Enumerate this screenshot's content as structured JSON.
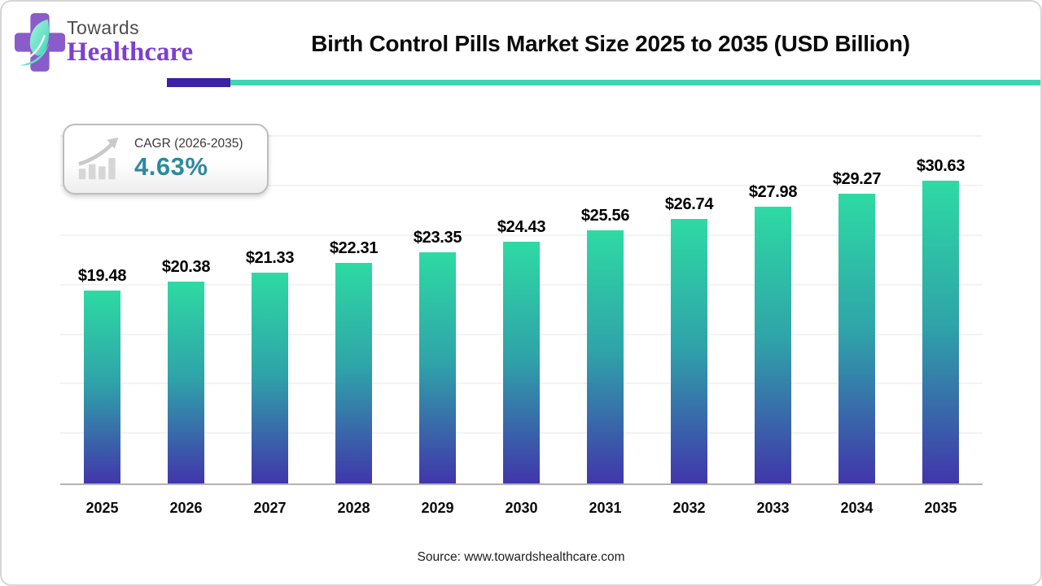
{
  "logo": {
    "towards": "Towards",
    "healthcare": "Healthcare"
  },
  "header": {
    "title": "Birth Control Pills Market Size 2025 to 2035 (USD Billion)"
  },
  "cagr_badge": {
    "label": "CAGR (2026-2035)",
    "value": "4.63%"
  },
  "source": {
    "text": "Source: www.towardshealthcare.com"
  },
  "colors": {
    "bar_top": "#2edaa3",
    "bar_mid": "#2fa3a9",
    "bar_bottom": "#4136ab",
    "accent_teal": "#3fd4b2",
    "accent_purple": "#3b21a5",
    "logo_purple": "#8a5cc9",
    "logo_leaf": "#3ed6b6",
    "cagr_value_color": "#2c89a0",
    "axis_line": "#b3b3b3",
    "gridline": "#f3f3f3"
  },
  "chart_data": {
    "type": "bar",
    "title": "Birth Control Pills Market Size 2025 to 2035 (USD Billion)",
    "categories": [
      "2025",
      "2026",
      "2027",
      "2028",
      "2029",
      "2030",
      "2031",
      "2032",
      "2033",
      "2034",
      "2035"
    ],
    "values": [
      19.48,
      20.38,
      21.33,
      22.31,
      23.35,
      24.43,
      25.56,
      26.74,
      27.98,
      29.27,
      30.63
    ],
    "labels": [
      "$19.48",
      "$20.38",
      "$21.33",
      "$22.31",
      "$23.35",
      "$24.43",
      "$25.56",
      "$26.74",
      "$27.98",
      "$29.27",
      "$30.63"
    ],
    "xlabel": "",
    "ylabel": "",
    "ylim": [
      0,
      38
    ],
    "gridline_step": 5,
    "grid": "horizontal-faint",
    "legend": "none",
    "bar_label_format": "$#.##"
  }
}
